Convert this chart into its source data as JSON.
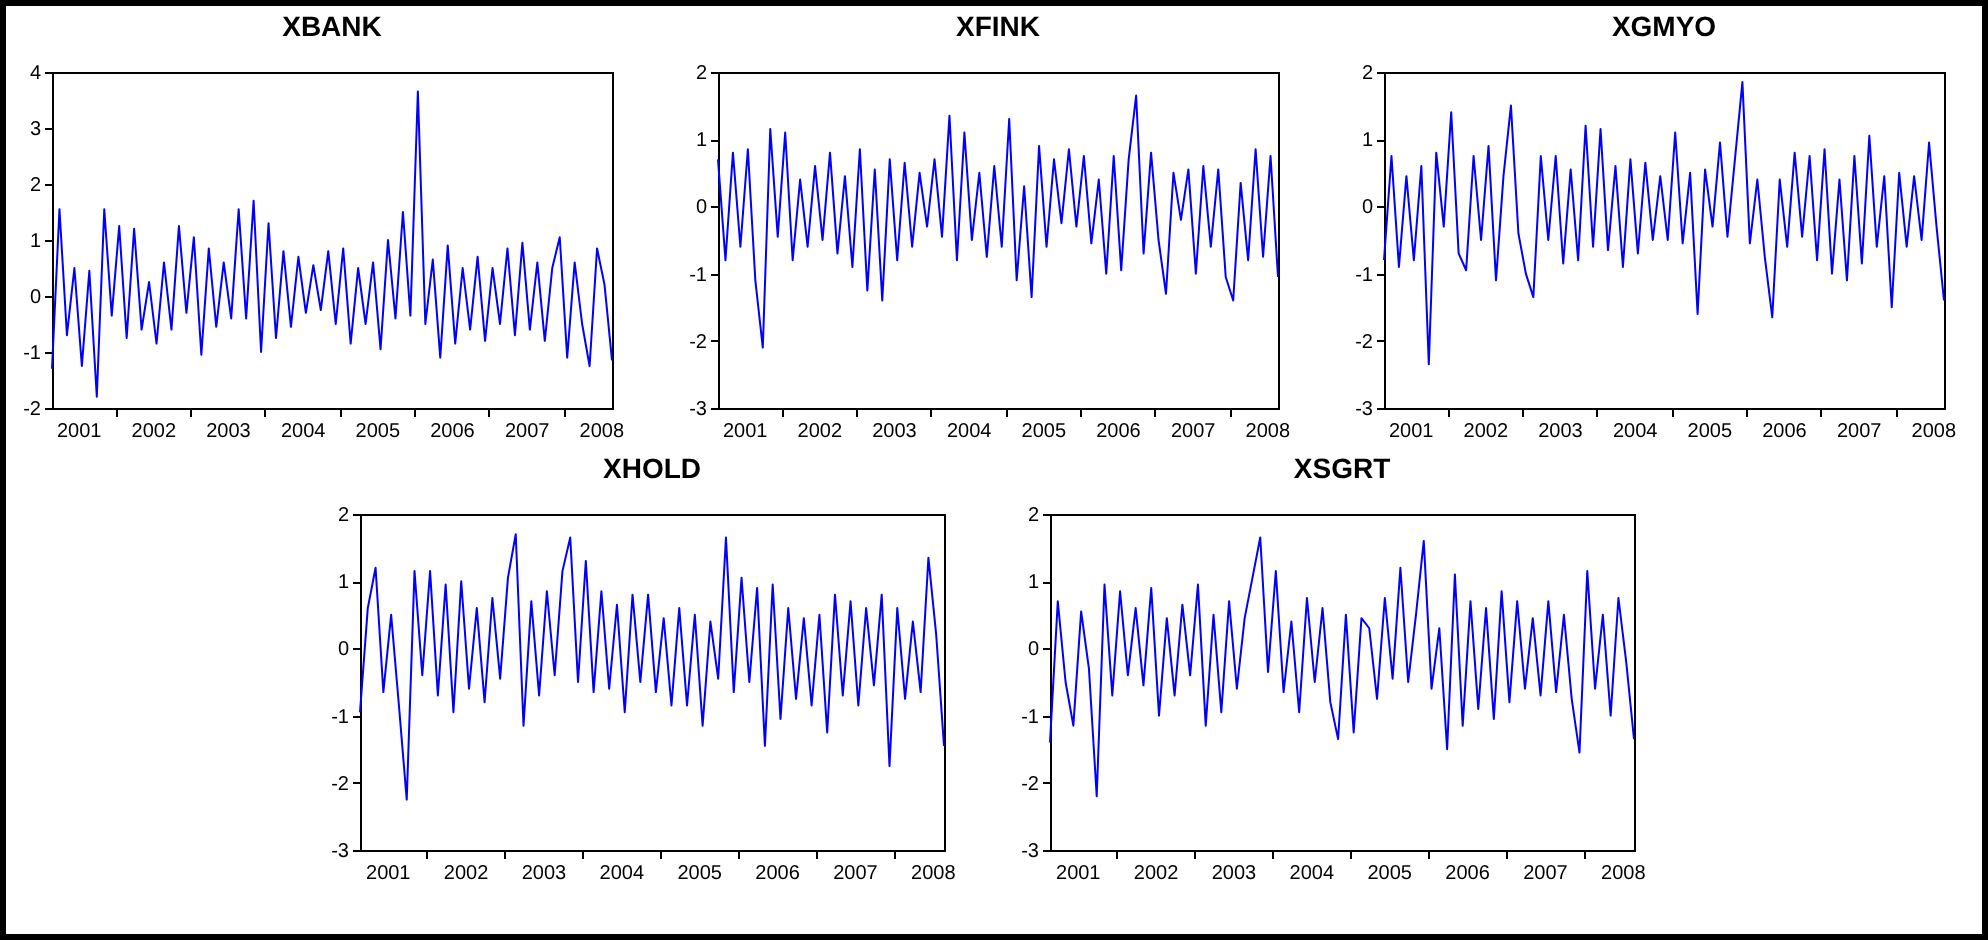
{
  "chart_data": [
    {
      "type": "line",
      "title": "XBANK",
      "x": [
        2001.15,
        2001.25,
        2001.35,
        2001.45,
        2001.55,
        2001.65,
        2001.75,
        2001.85,
        2001.95,
        2002.05,
        2002.15,
        2002.25,
        2002.35,
        2002.45,
        2002.55,
        2002.65,
        2002.75,
        2002.85,
        2002.95,
        2003.05,
        2003.15,
        2003.25,
        2003.35,
        2003.45,
        2003.55,
        2003.65,
        2003.75,
        2003.85,
        2003.95,
        2004.05,
        2004.15,
        2004.25,
        2004.35,
        2004.45,
        2004.55,
        2004.65,
        2004.75,
        2004.85,
        2004.95,
        2005.05,
        2005.15,
        2005.25,
        2005.35,
        2005.45,
        2005.55,
        2005.65,
        2005.75,
        2005.85,
        2005.95,
        2006.05,
        2006.15,
        2006.25,
        2006.35,
        2006.45,
        2006.55,
        2006.65,
        2006.75,
        2006.85,
        2006.95,
        2007.05,
        2007.15,
        2007.25,
        2007.35,
        2007.45,
        2007.55,
        2007.65,
        2007.75,
        2007.85,
        2007.95,
        2008.05,
        2008.15,
        2008.25,
        2008.35,
        2008.45,
        2008.55,
        2008.65
      ],
      "series": [
        {
          "color": "#0000ff",
          "values": [
            -1.3,
            1.55,
            -0.7,
            0.5,
            -1.25,
            0.45,
            -1.8,
            1.55,
            -0.35,
            1.25,
            -0.75,
            1.2,
            -0.6,
            0.25,
            -0.85,
            0.6,
            -0.6,
            1.25,
            -0.3,
            1.05,
            -1.05,
            0.85,
            -0.55,
            0.6,
            -0.4,
            1.55,
            -0.4,
            1.7,
            -1.0,
            1.3,
            -0.75,
            0.8,
            -0.55,
            0.7,
            -0.3,
            0.55,
            -0.25,
            0.8,
            -0.5,
            0.85,
            -0.85,
            0.5,
            -0.5,
            0.6,
            -0.95,
            1.0,
            -0.4,
            1.5,
            -0.35,
            3.65,
            -0.5,
            0.65,
            -1.1,
            0.9,
            -0.85,
            0.5,
            -0.6,
            0.7,
            -0.8,
            0.5,
            -0.5,
            0.85,
            -0.7,
            0.95,
            -0.6,
            0.6,
            -0.8,
            0.5,
            1.05,
            -1.1,
            0.6,
            -0.5,
            -1.25,
            0.85,
            0.2,
            -1.15
          ]
        }
      ],
      "xlim": [
        2001.15,
        2008.65
      ],
      "xticks": [
        {
          "value": 2001.5,
          "label": "2001"
        },
        {
          "value": 2002,
          "label": null
        },
        {
          "value": 2002.5,
          "label": "2002"
        },
        {
          "value": 2003,
          "label": null
        },
        {
          "value": 2003.5,
          "label": "2003"
        },
        {
          "value": 2004,
          "label": null
        },
        {
          "value": 2004.5,
          "label": "2004"
        },
        {
          "value": 2005,
          "label": null
        },
        {
          "value": 2005.5,
          "label": "2005"
        },
        {
          "value": 2006,
          "label": null
        },
        {
          "value": 2006.5,
          "label": "2006"
        },
        {
          "value": 2007,
          "label": null
        },
        {
          "value": 2007.5,
          "label": "2007"
        },
        {
          "value": 2008,
          "label": null
        },
        {
          "value": 2008.5,
          "label": "2008"
        }
      ],
      "ylim": [
        -2,
        4
      ],
      "yticks": [
        -2,
        -1,
        0,
        1,
        2,
        3,
        4
      ]
    },
    {
      "type": "line",
      "title": "XFINK",
      "x": [
        2001.15,
        2001.25,
        2001.35,
        2001.45,
        2001.55,
        2001.65,
        2001.75,
        2001.85,
        2001.95,
        2002.05,
        2002.15,
        2002.25,
        2002.35,
        2002.45,
        2002.55,
        2002.65,
        2002.75,
        2002.85,
        2002.95,
        2003.05,
        2003.15,
        2003.25,
        2003.35,
        2003.45,
        2003.55,
        2003.65,
        2003.75,
        2003.85,
        2003.95,
        2004.05,
        2004.15,
        2004.25,
        2004.35,
        2004.45,
        2004.55,
        2004.65,
        2004.75,
        2004.85,
        2004.95,
        2005.05,
        2005.15,
        2005.25,
        2005.35,
        2005.45,
        2005.55,
        2005.65,
        2005.75,
        2005.85,
        2005.95,
        2006.05,
        2006.15,
        2006.25,
        2006.35,
        2006.45,
        2006.55,
        2006.65,
        2006.75,
        2006.85,
        2006.95,
        2007.05,
        2007.15,
        2007.25,
        2007.35,
        2007.45,
        2007.55,
        2007.65,
        2007.75,
        2007.85,
        2007.95,
        2008.05,
        2008.15,
        2008.25,
        2008.35,
        2008.45,
        2008.55,
        2008.65
      ],
      "series": [
        {
          "color": "#0000ff",
          "values": [
            0.7,
            -0.8,
            0.8,
            -0.6,
            0.85,
            -1.1,
            -2.1,
            1.15,
            -0.45,
            1.1,
            -0.8,
            0.4,
            -0.6,
            0.6,
            -0.5,
            0.8,
            -0.7,
            0.45,
            -0.9,
            0.85,
            -1.25,
            0.55,
            -1.4,
            0.7,
            -0.8,
            0.65,
            -0.6,
            0.5,
            -0.3,
            0.7,
            -0.45,
            1.35,
            -0.8,
            1.1,
            -0.5,
            0.5,
            -0.75,
            0.6,
            -0.6,
            1.3,
            -1.1,
            0.3,
            -1.35,
            0.9,
            -0.6,
            0.7,
            -0.25,
            0.85,
            -0.3,
            0.75,
            -0.55,
            0.4,
            -1.0,
            0.75,
            -0.95,
            0.7,
            1.65,
            -0.7,
            0.8,
            -0.5,
            -1.3,
            0.5,
            -0.2,
            0.55,
            -1.0,
            0.6,
            -0.6,
            0.55,
            -1.05,
            -1.4,
            0.35,
            -0.8,
            0.85,
            -0.75,
            0.75,
            -1.05
          ]
        }
      ],
      "xlim": [
        2001.15,
        2008.65
      ],
      "xticks": [
        {
          "value": 2001.5,
          "label": "2001"
        },
        {
          "value": 2002,
          "label": null
        },
        {
          "value": 2002.5,
          "label": "2002"
        },
        {
          "value": 2003,
          "label": null
        },
        {
          "value": 2003.5,
          "label": "2003"
        },
        {
          "value": 2004,
          "label": null
        },
        {
          "value": 2004.5,
          "label": "2004"
        },
        {
          "value": 2005,
          "label": null
        },
        {
          "value": 2005.5,
          "label": "2005"
        },
        {
          "value": 2006,
          "label": null
        },
        {
          "value": 2006.5,
          "label": "2006"
        },
        {
          "value": 2007,
          "label": null
        },
        {
          "value": 2007.5,
          "label": "2007"
        },
        {
          "value": 2008,
          "label": null
        },
        {
          "value": 2008.5,
          "label": "2008"
        }
      ],
      "ylim": [
        -3,
        2
      ],
      "yticks": [
        -3,
        -2,
        -1,
        0,
        1,
        2
      ]
    },
    {
      "type": "line",
      "title": "XGMYO",
      "x": [
        2001.15,
        2001.25,
        2001.35,
        2001.45,
        2001.55,
        2001.65,
        2001.75,
        2001.85,
        2001.95,
        2002.05,
        2002.15,
        2002.25,
        2002.35,
        2002.45,
        2002.55,
        2002.65,
        2002.75,
        2002.85,
        2002.95,
        2003.05,
        2003.15,
        2003.25,
        2003.35,
        2003.45,
        2003.55,
        2003.65,
        2003.75,
        2003.85,
        2003.95,
        2004.05,
        2004.15,
        2004.25,
        2004.35,
        2004.45,
        2004.55,
        2004.65,
        2004.75,
        2004.85,
        2004.95,
        2005.05,
        2005.15,
        2005.25,
        2005.35,
        2005.45,
        2005.55,
        2005.65,
        2005.75,
        2005.85,
        2005.95,
        2006.05,
        2006.15,
        2006.25,
        2006.35,
        2006.45,
        2006.55,
        2006.65,
        2006.75,
        2006.85,
        2006.95,
        2007.05,
        2007.15,
        2007.25,
        2007.35,
        2007.45,
        2007.55,
        2007.65,
        2007.75,
        2007.85,
        2007.95,
        2008.05,
        2008.15,
        2008.25,
        2008.35,
        2008.45,
        2008.55,
        2008.65
      ],
      "series": [
        {
          "color": "#0000ff",
          "values": [
            -0.8,
            0.75,
            -0.9,
            0.45,
            -0.8,
            0.6,
            -2.35,
            0.8,
            -0.3,
            1.4,
            -0.7,
            -0.95,
            0.75,
            -0.5,
            0.9,
            -1.1,
            0.45,
            1.5,
            -0.4,
            -1.0,
            -1.35,
            0.75,
            -0.5,
            0.75,
            -0.85,
            0.55,
            -0.8,
            1.2,
            -0.6,
            1.15,
            -0.65,
            0.6,
            -0.9,
            0.7,
            -0.7,
            0.65,
            -0.5,
            0.45,
            -0.5,
            1.1,
            -0.55,
            0.5,
            -1.6,
            0.55,
            -0.3,
            0.95,
            -0.45,
            0.7,
            1.85,
            -0.55,
            0.4,
            -0.75,
            -1.65,
            0.4,
            -0.6,
            0.8,
            -0.45,
            0.75,
            -0.8,
            0.85,
            -1.0,
            0.4,
            -1.1,
            0.75,
            -0.85,
            1.05,
            -0.6,
            0.45,
            -1.5,
            0.5,
            -0.6,
            0.45,
            -0.5,
            0.95,
            -0.3,
            -1.4
          ]
        }
      ],
      "xlim": [
        2001.15,
        2008.65
      ],
      "xticks": [
        {
          "value": 2001.5,
          "label": "2001"
        },
        {
          "value": 2002,
          "label": null
        },
        {
          "value": 2002.5,
          "label": "2002"
        },
        {
          "value": 2003,
          "label": null
        },
        {
          "value": 2003.5,
          "label": "2003"
        },
        {
          "value": 2004,
          "label": null
        },
        {
          "value": 2004.5,
          "label": "2004"
        },
        {
          "value": 2005,
          "label": null
        },
        {
          "value": 2005.5,
          "label": "2005"
        },
        {
          "value": 2006,
          "label": null
        },
        {
          "value": 2006.5,
          "label": "2006"
        },
        {
          "value": 2007,
          "label": null
        },
        {
          "value": 2007.5,
          "label": "2007"
        },
        {
          "value": 2008,
          "label": null
        },
        {
          "value": 2008.5,
          "label": "2008"
        }
      ],
      "ylim": [
        -3,
        2
      ],
      "yticks": [
        -3,
        -2,
        -1,
        0,
        1,
        2
      ]
    },
    {
      "type": "line",
      "title": "XHOLD",
      "x": [
        2001.15,
        2001.25,
        2001.35,
        2001.45,
        2001.55,
        2001.65,
        2001.75,
        2001.85,
        2001.95,
        2002.05,
        2002.15,
        2002.25,
        2002.35,
        2002.45,
        2002.55,
        2002.65,
        2002.75,
        2002.85,
        2002.95,
        2003.05,
        2003.15,
        2003.25,
        2003.35,
        2003.45,
        2003.55,
        2003.65,
        2003.75,
        2003.85,
        2003.95,
        2004.05,
        2004.15,
        2004.25,
        2004.35,
        2004.45,
        2004.55,
        2004.65,
        2004.75,
        2004.85,
        2004.95,
        2005.05,
        2005.15,
        2005.25,
        2005.35,
        2005.45,
        2005.55,
        2005.65,
        2005.75,
        2005.85,
        2005.95,
        2006.05,
        2006.15,
        2006.25,
        2006.35,
        2006.45,
        2006.55,
        2006.65,
        2006.75,
        2006.85,
        2006.95,
        2007.05,
        2007.15,
        2007.25,
        2007.35,
        2007.45,
        2007.55,
        2007.65,
        2007.75,
        2007.85,
        2007.95,
        2008.05,
        2008.15,
        2008.25,
        2008.35,
        2008.45,
        2008.55,
        2008.65
      ],
      "series": [
        {
          "color": "#0000ff",
          "values": [
            -0.95,
            0.6,
            1.2,
            -0.65,
            0.5,
            -0.85,
            -2.25,
            1.15,
            -0.4,
            1.15,
            -0.7,
            0.95,
            -0.95,
            1.0,
            -0.6,
            0.6,
            -0.8,
            0.75,
            -0.45,
            1.05,
            1.7,
            -1.15,
            0.7,
            -0.7,
            0.85,
            -0.4,
            1.15,
            1.65,
            -0.5,
            1.3,
            -0.65,
            0.85,
            -0.6,
            0.65,
            -0.95,
            0.8,
            -0.5,
            0.8,
            -0.65,
            0.45,
            -0.85,
            0.6,
            -0.85,
            0.5,
            -1.15,
            0.4,
            -0.45,
            1.65,
            -0.65,
            1.05,
            -0.5,
            0.9,
            -1.45,
            0.95,
            -1.05,
            0.6,
            -0.75,
            0.45,
            -0.85,
            0.5,
            -1.25,
            0.8,
            -0.7,
            0.7,
            -0.85,
            0.6,
            -0.55,
            0.8,
            -1.75,
            0.6,
            -0.75,
            0.4,
            -0.65,
            1.35,
            0.2,
            -1.45
          ]
        }
      ],
      "xlim": [
        2001.15,
        2008.65
      ],
      "xticks": [
        {
          "value": 2001.5,
          "label": "2001"
        },
        {
          "value": 2002,
          "label": null
        },
        {
          "value": 2002.5,
          "label": "2002"
        },
        {
          "value": 2003,
          "label": null
        },
        {
          "value": 2003.5,
          "label": "2003"
        },
        {
          "value": 2004,
          "label": null
        },
        {
          "value": 2004.5,
          "label": "2004"
        },
        {
          "value": 2005,
          "label": null
        },
        {
          "value": 2005.5,
          "label": "2005"
        },
        {
          "value": 2006,
          "label": null
        },
        {
          "value": 2006.5,
          "label": "2006"
        },
        {
          "value": 2007,
          "label": null
        },
        {
          "value": 2007.5,
          "label": "2007"
        },
        {
          "value": 2008,
          "label": null
        },
        {
          "value": 2008.5,
          "label": "2008"
        }
      ],
      "ylim": [
        -3,
        2
      ],
      "yticks": [
        -3,
        -2,
        -1,
        0,
        1,
        2
      ]
    },
    {
      "type": "line",
      "title": "XSGRT",
      "x": [
        2001.15,
        2001.25,
        2001.35,
        2001.45,
        2001.55,
        2001.65,
        2001.75,
        2001.85,
        2001.95,
        2002.05,
        2002.15,
        2002.25,
        2002.35,
        2002.45,
        2002.55,
        2002.65,
        2002.75,
        2002.85,
        2002.95,
        2003.05,
        2003.15,
        2003.25,
        2003.35,
        2003.45,
        2003.55,
        2003.65,
        2003.75,
        2003.85,
        2003.95,
        2004.05,
        2004.15,
        2004.25,
        2004.35,
        2004.45,
        2004.55,
        2004.65,
        2004.75,
        2004.85,
        2004.95,
        2005.05,
        2005.15,
        2005.25,
        2005.35,
        2005.45,
        2005.55,
        2005.65,
        2005.75,
        2005.85,
        2005.95,
        2006.05,
        2006.15,
        2006.25,
        2006.35,
        2006.45,
        2006.55,
        2006.65,
        2006.75,
        2006.85,
        2006.95,
        2007.05,
        2007.15,
        2007.25,
        2007.35,
        2007.45,
        2007.55,
        2007.65,
        2007.75,
        2007.85,
        2007.95,
        2008.05,
        2008.15,
        2008.25,
        2008.35,
        2008.45,
        2008.55,
        2008.65
      ],
      "series": [
        {
          "color": "#0000ff",
          "values": [
            -1.4,
            0.7,
            -0.5,
            -1.15,
            0.55,
            -0.3,
            -2.2,
            0.95,
            -0.7,
            0.85,
            -0.4,
            0.6,
            -0.55,
            0.9,
            -1.0,
            0.45,
            -0.7,
            0.65,
            -0.4,
            0.95,
            -1.15,
            0.5,
            -0.95,
            0.7,
            -0.6,
            0.45,
            1.05,
            1.65,
            -0.35,
            1.15,
            -0.65,
            0.4,
            -0.95,
            0.75,
            -0.5,
            0.6,
            -0.8,
            -1.35,
            0.5,
            -1.25,
            0.45,
            0.3,
            -0.75,
            0.75,
            -0.45,
            1.2,
            -0.5,
            0.5,
            1.6,
            -0.6,
            0.3,
            -1.5,
            1.1,
            -1.15,
            0.7,
            -0.9,
            0.6,
            -1.05,
            0.85,
            -0.8,
            0.7,
            -0.6,
            0.45,
            -0.7,
            0.7,
            -0.65,
            0.5,
            -0.75,
            -1.55,
            1.15,
            -0.6,
            0.5,
            -1.0,
            0.75,
            -0.2,
            -1.35
          ]
        }
      ],
      "xlim": [
        2001.15,
        2008.65
      ],
      "xticks": [
        {
          "value": 2001.5,
          "label": "2001"
        },
        {
          "value": 2002,
          "label": null
        },
        {
          "value": 2002.5,
          "label": "2002"
        },
        {
          "value": 2003,
          "label": null
        },
        {
          "value": 2003.5,
          "label": "2003"
        },
        {
          "value": 2004,
          "label": null
        },
        {
          "value": 2004.5,
          "label": "2004"
        },
        {
          "value": 2005,
          "label": null
        },
        {
          "value": 2005.5,
          "label": "2005"
        },
        {
          "value": 2006,
          "label": null
        },
        {
          "value": 2006.5,
          "label": "2006"
        },
        {
          "value": 2007,
          "label": null
        },
        {
          "value": 2007.5,
          "label": "2007"
        },
        {
          "value": 2008,
          "label": null
        },
        {
          "value": 2008.5,
          "label": "2008"
        }
      ],
      "ylim": [
        -3,
        2
      ],
      "yticks": [
        -3,
        -2,
        -1,
        0,
        1,
        2
      ]
    }
  ]
}
